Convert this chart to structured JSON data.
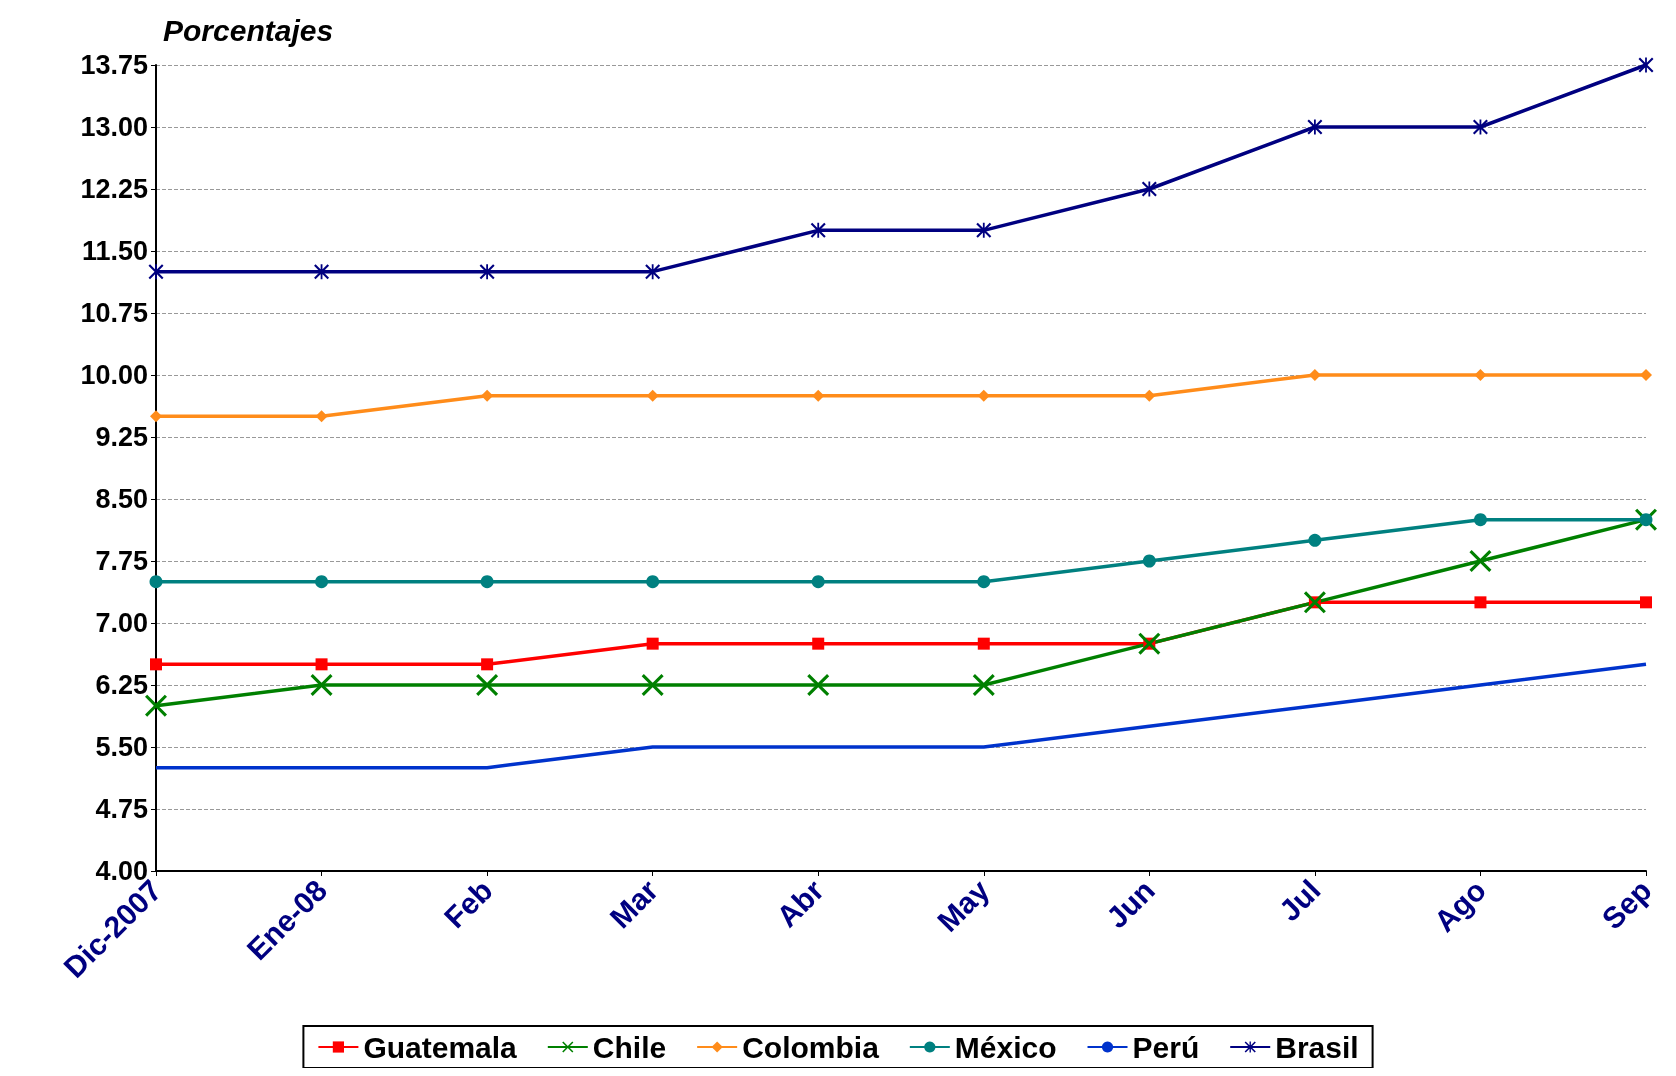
{
  "chart_data": {
    "type": "line",
    "ylabel": "Porcentajes",
    "categories": [
      "Dic-2007",
      "Ene-08",
      "Feb",
      "Mar",
      "Abr",
      "May",
      "Jun",
      "Jul",
      "Ago",
      "Sep"
    ],
    "series": [
      {
        "name": "Guatemala",
        "color": "#ff0000",
        "marker": "square",
        "values": [
          6.5,
          6.5,
          6.5,
          6.75,
          6.75,
          6.75,
          6.75,
          7.25,
          7.25,
          7.25
        ]
      },
      {
        "name": "Chile",
        "color": "#008000",
        "marker": "cross",
        "values": [
          6.0,
          6.25,
          6.25,
          6.25,
          6.25,
          6.25,
          6.75,
          7.25,
          7.75,
          8.25
        ]
      },
      {
        "name": "Colombia",
        "color": "#ff8c1a",
        "marker": "diamond",
        "values": [
          9.5,
          9.5,
          9.75,
          9.75,
          9.75,
          9.75,
          9.75,
          10.0,
          10.0,
          10.0
        ]
      },
      {
        "name": "México",
        "color": "#008080",
        "marker": "circle",
        "values": [
          7.5,
          7.5,
          7.5,
          7.5,
          7.5,
          7.5,
          7.75,
          8.0,
          8.25,
          8.25
        ]
      },
      {
        "name": "Perú",
        "color": "#0033cc",
        "marker": "none",
        "values": [
          5.25,
          5.25,
          5.25,
          5.5,
          5.5,
          5.5,
          5.75,
          6.0,
          6.25,
          6.5
        ]
      },
      {
        "name": "Brasil",
        "color": "#000080",
        "marker": "star",
        "values": [
          11.25,
          11.25,
          11.25,
          11.25,
          11.75,
          11.75,
          12.25,
          13.0,
          13.0,
          13.75
        ]
      }
    ],
    "ylim": [
      4.0,
      13.75
    ],
    "yticks": [
      {
        "value": 4,
        "label": "4.00"
      },
      {
        "value": 4.75,
        "label": "4.75"
      },
      {
        "value": 5.5,
        "label": "5.50"
      },
      {
        "value": 6.25,
        "label": "6.25"
      },
      {
        "value": 7,
        "label": "7.00"
      },
      {
        "value": 7.75,
        "label": "7.75"
      },
      {
        "value": 8.5,
        "label": "8.50"
      },
      {
        "value": 9.25,
        "label": "9.25"
      },
      {
        "value": 10,
        "label": "10.00"
      },
      {
        "value": 10.75,
        "label": "10.75"
      },
      {
        "value": 11.5,
        "label": "11.50"
      },
      {
        "value": 12.25,
        "label": "12.25"
      },
      {
        "value": 13,
        "label": "13.00"
      },
      {
        "value": 13.75,
        "label": "13.75"
      }
    ],
    "grid": "y",
    "legend": "bottom",
    "line_style": "solid"
  }
}
